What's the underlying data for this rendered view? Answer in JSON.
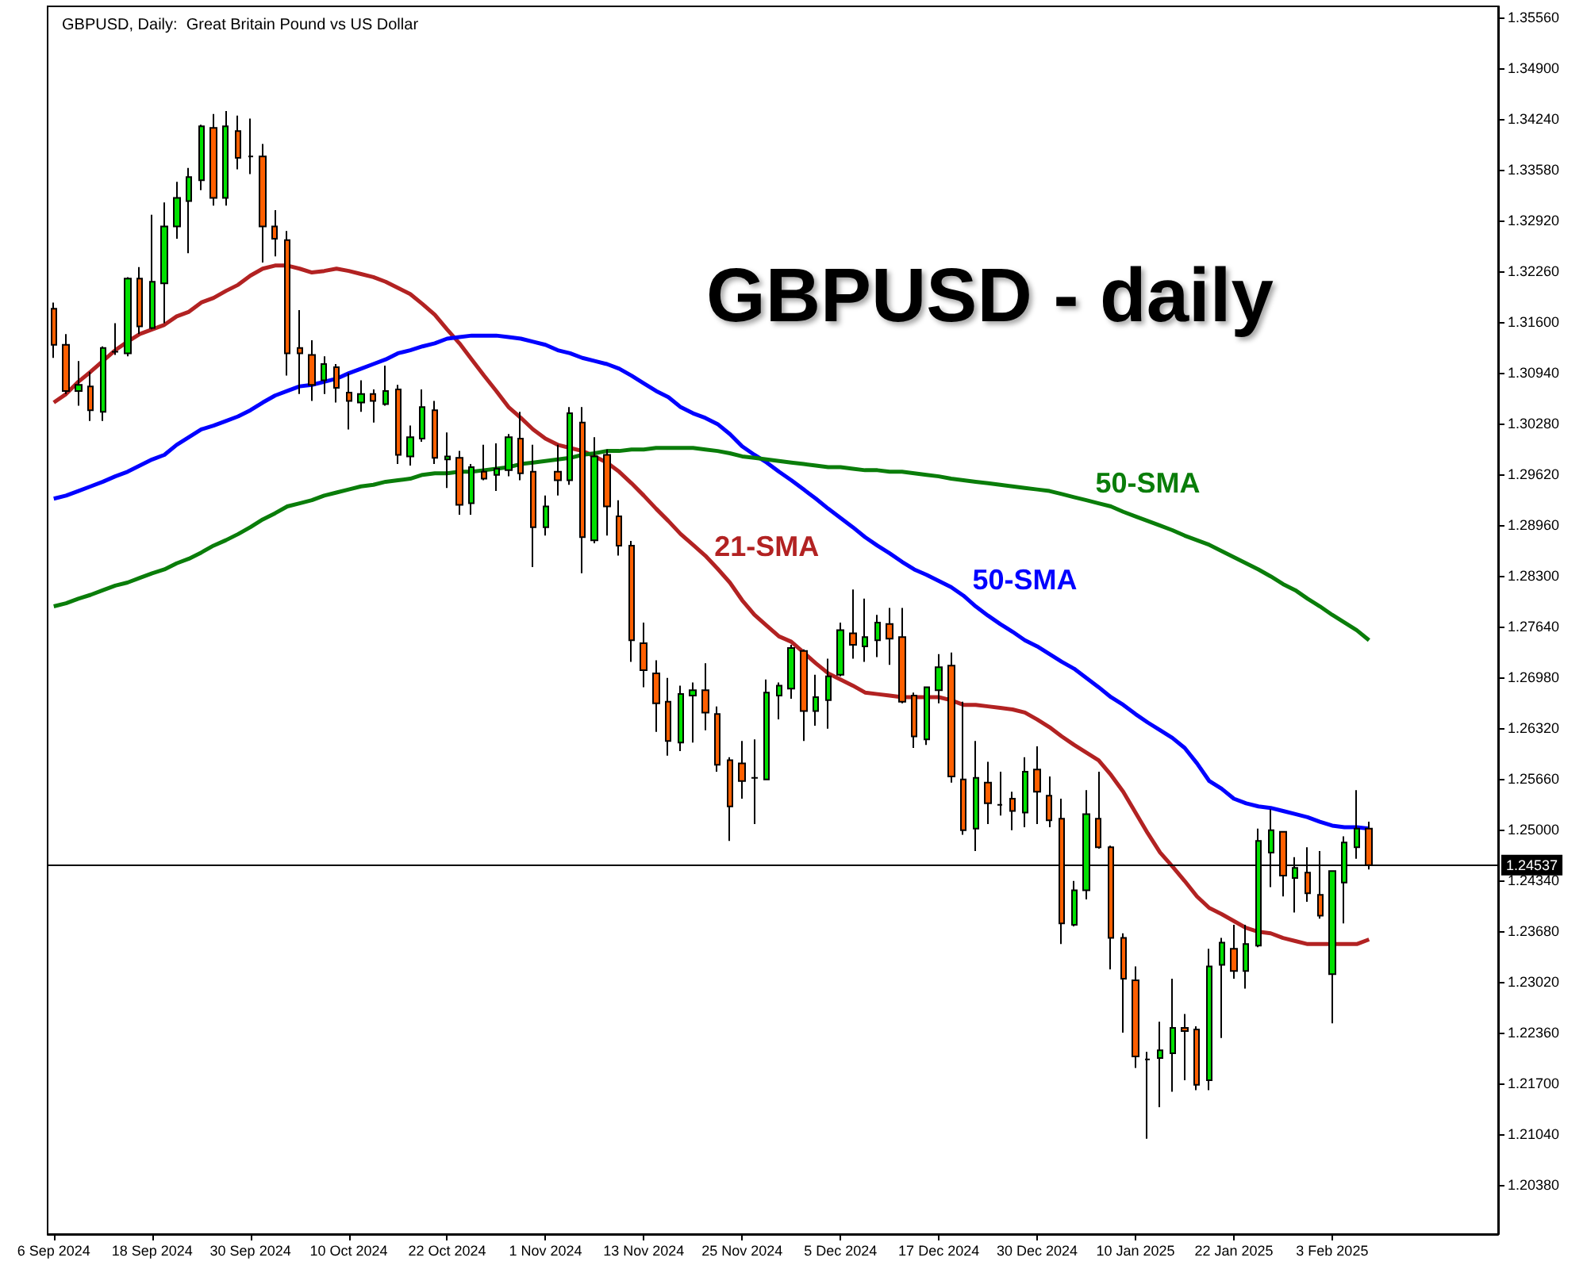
{
  "chart_data": {
    "type": "candlestick",
    "title": "GBPUSD - daily",
    "subtitle": "GBPUSD, Daily:  Great Britain Pound vs US Dollar",
    "categories": [
      "6 Sep 2024",
      null,
      null,
      null,
      null,
      null,
      null,
      null,
      "18 Sep 2024",
      null,
      null,
      null,
      null,
      null,
      null,
      null,
      "30 Sep 2024",
      null,
      null,
      null,
      null,
      null,
      null,
      null,
      "10 Oct 2024",
      null,
      null,
      null,
      null,
      null,
      null,
      null,
      "22 Oct 2024",
      null,
      null,
      null,
      null,
      null,
      null,
      null,
      "1 Nov 2024",
      null,
      null,
      null,
      null,
      null,
      null,
      null,
      "13 Nov 2024",
      null,
      null,
      null,
      null,
      null,
      null,
      null,
      "25 Nov 2024",
      null,
      null,
      null,
      null,
      null,
      null,
      null,
      "5 Dec 2024",
      null,
      null,
      null,
      null,
      null,
      null,
      null,
      "17 Dec 2024",
      null,
      null,
      null,
      null,
      null,
      null,
      null,
      "30 Dec 2024",
      null,
      null,
      null,
      null,
      null,
      null,
      null,
      "10 Jan 2025",
      null,
      null,
      null,
      null,
      null,
      null,
      null,
      "22 Jan 2025",
      null,
      null,
      null,
      null,
      null,
      null,
      null,
      "3 Feb 2025",
      null,
      null,
      null,
      null,
      null,
      null,
      null,
      null,
      null,
      null,
      null,
      null,
      null
    ],
    "ohlc": [
      [
        1.3177,
        1.3185,
        1.3113,
        1.313
      ],
      [
        1.313,
        1.3144,
        1.3066,
        1.307
      ],
      [
        1.307,
        1.3109,
        1.3051,
        1.3078
      ],
      [
        1.3076,
        1.3095,
        1.3031,
        1.3045
      ],
      [
        1.3043,
        1.3128,
        1.3031,
        1.3126
      ],
      [
        1.3121,
        1.3158,
        1.3117,
        1.3121
      ],
      [
        1.3119,
        1.3218,
        1.3115,
        1.3216
      ],
      [
        1.3216,
        1.3231,
        1.3144,
        1.3154
      ],
      [
        1.3152,
        1.3299,
        1.315,
        1.3212
      ],
      [
        1.321,
        1.3315,
        1.3158,
        1.3284
      ],
      [
        1.3284,
        1.3342,
        1.3268,
        1.3321
      ],
      [
        1.3317,
        1.336,
        1.3249,
        1.3348
      ],
      [
        1.3344,
        1.3416,
        1.3331,
        1.3414
      ],
      [
        1.3412,
        1.343,
        1.3311,
        1.3321
      ],
      [
        1.3321,
        1.3434,
        1.3311,
        1.3414
      ],
      [
        1.3408,
        1.3428,
        1.3358,
        1.3373
      ],
      [
        1.3375,
        1.3424,
        1.3352,
        1.3375
      ],
      [
        1.3375,
        1.3391,
        1.3237,
        1.3284
      ],
      [
        1.3284,
        1.3305,
        1.3245,
        1.3268
      ],
      [
        1.3266,
        1.3278,
        1.309,
        1.3119
      ],
      [
        1.3126,
        1.3175,
        1.3066,
        1.3119
      ],
      [
        1.3117,
        1.3136,
        1.3057,
        1.3078
      ],
      [
        1.3084,
        1.3115,
        1.3066,
        1.3105
      ],
      [
        1.3101,
        1.3105,
        1.3055,
        1.3074
      ],
      [
        1.3068,
        1.3093,
        1.302,
        1.3057
      ],
      [
        1.3055,
        1.3084,
        1.3043,
        1.3066
      ],
      [
        1.3066,
        1.3072,
        1.3029,
        1.3057
      ],
      [
        1.3053,
        1.3103,
        1.3051,
        1.307
      ],
      [
        1.3072,
        1.3078,
        1.2975,
        1.2987
      ],
      [
        1.2985,
        1.3025,
        1.2973,
        1.301
      ],
      [
        1.3008,
        1.3072,
        1.3004,
        1.3049
      ],
      [
        1.3045,
        1.3057,
        1.2975,
        1.2983
      ],
      [
        1.2981,
        1.3016,
        1.2944,
        1.2985
      ],
      [
        1.2983,
        1.2992,
        1.2909,
        1.2922
      ],
      [
        1.2924,
        1.2975,
        1.2909,
        1.2971
      ],
      [
        1.2965,
        1.3,
        1.2954,
        1.2956
      ],
      [
        1.2961,
        1.3002,
        1.294,
        1.2969
      ],
      [
        1.2967,
        1.3014,
        1.2959,
        1.301
      ],
      [
        1.3008,
        1.3043,
        1.2954,
        1.2963
      ],
      [
        1.2965,
        1.3,
        1.2841,
        1.2893
      ],
      [
        1.2893,
        1.2934,
        1.2882,
        1.292
      ],
      [
        1.2965,
        1.3,
        1.2934,
        1.2954
      ],
      [
        1.2954,
        1.3049,
        1.2948,
        1.3041
      ],
      [
        1.3029,
        1.3049,
        1.2833,
        1.288
      ],
      [
        1.2876,
        1.301,
        1.2872,
        1.2985
      ],
      [
        1.2987,
        1.2994,
        1.2882,
        1.292
      ],
      [
        1.2907,
        1.2928,
        1.2856,
        1.2869
      ],
      [
        1.2869,
        1.2875,
        1.2718,
        1.2746
      ],
      [
        1.2742,
        1.2769,
        1.2685,
        1.2707
      ],
      [
        1.2703,
        1.272,
        1.2627,
        1.2664
      ],
      [
        1.2666,
        1.2697,
        1.2596,
        1.2615
      ],
      [
        1.2613,
        1.2687,
        1.2602,
        1.2676
      ],
      [
        1.2674,
        1.2691,
        1.2613,
        1.2681
      ],
      [
        1.2681,
        1.2716,
        1.2629,
        1.2652
      ],
      [
        1.265,
        1.266,
        1.2575,
        1.2584
      ],
      [
        1.259,
        1.2594,
        1.2485,
        1.253
      ],
      [
        1.2586,
        1.2615,
        1.254,
        1.2563
      ],
      [
        1.2567,
        1.2617,
        1.2507,
        1.2567
      ],
      [
        1.2565,
        1.2695,
        1.2565,
        1.2678
      ],
      [
        1.2674,
        1.2691,
        1.2643,
        1.2687
      ],
      [
        1.2683,
        1.274,
        1.267,
        1.2736
      ],
      [
        1.2732,
        1.2734,
        1.2615,
        1.2654
      ],
      [
        1.2654,
        1.2701,
        1.2635,
        1.2672
      ],
      [
        1.2668,
        1.2722,
        1.2631,
        1.2699
      ],
      [
        1.2701,
        1.2769,
        1.2699,
        1.2759
      ],
      [
        1.2755,
        1.2812,
        1.2722,
        1.274
      ],
      [
        1.2738,
        1.28,
        1.2718,
        1.275
      ],
      [
        1.2746,
        1.2779,
        1.2724,
        1.2769
      ],
      [
        1.2767,
        1.2788,
        1.2714,
        1.2748
      ],
      [
        1.275,
        1.2788,
        1.2664,
        1.2666
      ],
      [
        1.2674,
        1.2678,
        1.2606,
        1.2621
      ],
      [
        1.2617,
        1.2685,
        1.261,
        1.2685
      ],
      [
        1.2681,
        1.2728,
        1.2664,
        1.2711
      ],
      [
        1.2713,
        1.273,
        1.2561,
        1.2569
      ],
      [
        1.2565,
        1.2666,
        1.2493,
        1.2499
      ],
      [
        1.2501,
        1.2615,
        1.2472,
        1.2567
      ],
      [
        1.2561,
        1.2588,
        1.2507,
        1.2534
      ],
      [
        1.2532,
        1.2575,
        1.2518,
        1.2532
      ],
      [
        1.254,
        1.2549,
        1.2499,
        1.2524
      ],
      [
        1.2522,
        1.2594,
        1.2503,
        1.2575
      ],
      [
        1.2578,
        1.2608,
        1.2507,
        1.2549
      ],
      [
        1.2544,
        1.2569,
        1.2503,
        1.2512
      ],
      [
        1.2514,
        1.254,
        1.2351,
        1.2378
      ],
      [
        1.2376,
        1.2433,
        1.2374,
        1.2421
      ],
      [
        1.2421,
        1.2551,
        1.2409,
        1.252
      ],
      [
        1.2514,
        1.2575,
        1.2475,
        1.2477
      ],
      [
        1.2477,
        1.2479,
        1.2318,
        1.2359
      ],
      [
        1.2359,
        1.2365,
        1.2236,
        1.2306
      ],
      [
        1.2304,
        1.2322,
        1.219,
        1.2205
      ],
      [
        1.2201,
        1.2211,
        1.2098,
        1.2201
      ],
      [
        1.2203,
        1.225,
        1.2139,
        1.2213
      ],
      [
        1.2209,
        1.2306,
        1.2159,
        1.2242
      ],
      [
        1.2242,
        1.226,
        1.2174,
        1.2238
      ],
      [
        1.224,
        1.2244,
        1.2161,
        1.2168
      ],
      [
        1.2174,
        1.2345,
        1.2161,
        1.2322
      ],
      [
        1.2324,
        1.2359,
        1.2229,
        1.2353
      ],
      [
        1.2345,
        1.2376,
        1.2306,
        1.2316
      ],
      [
        1.2316,
        1.2376,
        1.2293,
        1.2351
      ],
      [
        1.2349,
        1.2501,
        1.2347,
        1.2485
      ],
      [
        1.247,
        1.2526,
        1.2425,
        1.2499
      ],
      [
        1.2497,
        1.2497,
        1.2413,
        1.244
      ],
      [
        1.2437,
        1.2464,
        1.2392,
        1.245
      ],
      [
        1.2444,
        1.2477,
        1.2406,
        1.2417
      ],
      [
        1.2415,
        1.2472,
        1.2384,
        1.2388
      ],
      [
        1.2312,
        1.2446,
        1.2248,
        1.2446
      ],
      [
        1.2431,
        1.2491,
        1.2378,
        1.2483
      ],
      [
        1.2477,
        1.2551,
        1.2462,
        1.2501
      ],
      [
        1.2501,
        1.251,
        1.2448,
        1.24537
      ],
      null,
      null,
      null,
      null,
      null,
      null,
      null,
      null,
      null,
      null
    ],
    "colors": [
      "#ff5f00",
      "#ff5f00",
      "#00e000",
      "#ff5f00",
      "#00e000",
      "#000000",
      "#00e000",
      "#ff5f00",
      "#00e000",
      "#00e000",
      "#00e000",
      "#00e000",
      "#00e000",
      "#ff5f00",
      "#00e000",
      "#ff5f00",
      "#000000",
      "#ff5f00",
      "#ff5f00",
      "#ff5f00",
      "#ff5f00",
      "#ff5f00",
      "#00e000",
      "#ff5f00",
      "#ff5f00",
      "#00e000",
      "#ff5f00",
      "#00e000",
      "#ff5f00",
      "#00e000",
      "#00e000",
      "#ff5f00",
      "#00e000",
      "#ff5f00",
      "#00e000",
      "#ff5f00",
      "#00e000",
      "#00e000",
      "#ff5f00",
      "#ff5f00",
      "#00e000",
      "#ff5f00",
      "#00e000",
      "#ff5f00",
      "#00e000",
      "#ff5f00",
      "#ff5f00",
      "#ff5f00",
      "#ff5f00",
      "#ff5f00",
      "#ff5f00",
      "#00e000",
      "#00e000",
      "#ff5f00",
      "#ff5f00",
      "#ff5f00",
      "#ff5f00",
      "#000000",
      "#00e000",
      "#00e000",
      "#00e000",
      "#ff5f00",
      "#00e000",
      "#00e000",
      "#00e000",
      "#ff5f00",
      "#00e000",
      "#00e000",
      "#ff5f00",
      "#ff5f00",
      "#ff5f00",
      "#00e000",
      "#00e000",
      "#ff5f00",
      "#ff5f00",
      "#00e000",
      "#ff5f00",
      "#000000",
      "#ff5f00",
      "#00e000",
      "#ff5f00",
      "#ff5f00",
      "#ff5f00",
      "#00e000",
      "#00e000",
      "#ff5f00",
      "#ff5f00",
      "#ff5f00",
      "#ff5f00",
      "#000000",
      "#00e000",
      "#00e000",
      "#ff5f00",
      "#ff5f00",
      "#00e000",
      "#00e000",
      "#ff5f00",
      "#00e000",
      "#00e000",
      "#00e000",
      "#ff5f00",
      "#00e000",
      "#ff5f00",
      "#ff5f00",
      "#00e000",
      "#00e000",
      "#00e000",
      "#ff5f00",
      null,
      null,
      null,
      null,
      null,
      null,
      null,
      null,
      null,
      null
    ],
    "series": [
      {
        "type": "line",
        "name": "21-SMA",
        "color": "#b22222",
        "values": [
          1.3055,
          1.3066,
          1.3082,
          1.3095,
          1.3109,
          1.3123,
          1.3134,
          1.3144,
          1.315,
          1.3156,
          1.3167,
          1.3173,
          1.3185,
          1.3191,
          1.32,
          1.3208,
          1.322,
          1.3229,
          1.3233,
          1.3233,
          1.3229,
          1.3224,
          1.3226,
          1.3229,
          1.3226,
          1.3222,
          1.3218,
          1.3212,
          1.3204,
          1.3196,
          1.3183,
          1.3169,
          1.315,
          1.3132,
          1.3111,
          1.309,
          1.307,
          1.3049,
          1.3035,
          1.302,
          1.3008,
          1.3,
          1.2996,
          1.2992,
          1.2985,
          1.2977,
          1.2965,
          1.295,
          1.2934,
          1.2917,
          1.2901,
          1.2884,
          1.287,
          1.2856,
          1.2839,
          1.2821,
          1.2798,
          1.2779,
          1.2765,
          1.2751,
          1.2744,
          1.273,
          1.2716,
          1.2703,
          1.2695,
          1.2687,
          1.2678,
          1.2676,
          1.2674,
          1.2672,
          1.2672,
          1.2672,
          1.2672,
          1.2668,
          1.2662,
          1.2662,
          1.266,
          1.2658,
          1.2656,
          1.2652,
          1.2643,
          1.2633,
          1.2621,
          1.261,
          1.26,
          1.259,
          1.2571,
          1.2549,
          1.2522,
          1.2495,
          1.247,
          1.2452,
          1.2433,
          1.2413,
          1.2398,
          1.239,
          1.2381,
          1.2372,
          1.2367,
          1.2365,
          1.2359,
          1.2355,
          1.2351,
          1.2351,
          1.2351,
          1.2351,
          1.2351,
          1.2357,
          null,
          null,
          null,
          null,
          null,
          null,
          null,
          null,
          null,
          null
        ]
      },
      {
        "type": "line",
        "name": "50-SMA",
        "color": "#0000ff",
        "values": [
          1.293,
          1.2934,
          1.294,
          1.2946,
          1.2952,
          1.2959,
          1.2965,
          1.2973,
          1.2981,
          1.2987,
          1.3,
          1.301,
          1.302,
          1.3025,
          1.3031,
          1.3037,
          1.3045,
          1.3055,
          1.3064,
          1.307,
          1.3076,
          1.3078,
          1.3082,
          1.3086,
          1.3093,
          1.3099,
          1.3105,
          1.3111,
          1.3119,
          1.3123,
          1.3128,
          1.3132,
          1.3138,
          1.314,
          1.3142,
          1.3142,
          1.3142,
          1.314,
          1.3138,
          1.3134,
          1.313,
          1.3123,
          1.3119,
          1.3113,
          1.3109,
          1.3105,
          1.3099,
          1.309,
          1.308,
          1.307,
          1.3062,
          1.3049,
          1.3041,
          1.3035,
          1.3027,
          1.3014,
          1.2998,
          1.2987,
          1.2977,
          1.2965,
          1.2954,
          1.2942,
          1.293,
          1.2917,
          1.2905,
          1.2893,
          1.288,
          1.2869,
          1.2859,
          1.2848,
          1.2838,
          1.2831,
          1.2823,
          1.2815,
          1.2804,
          1.279,
          1.2778,
          1.2767,
          1.2757,
          1.2746,
          1.2738,
          1.2728,
          1.2718,
          1.2709,
          1.2697,
          1.2685,
          1.2672,
          1.2662,
          1.265,
          1.2639,
          1.2629,
          1.2619,
          1.2606,
          1.2586,
          1.2563,
          1.2553,
          1.254,
          1.2534,
          1.253,
          1.2528,
          1.2524,
          1.252,
          1.2516,
          1.251,
          1.2505,
          1.2503,
          1.2503,
          1.2501,
          null,
          null,
          null,
          null,
          null,
          null,
          null,
          null,
          null,
          null
        ]
      },
      {
        "type": "line",
        "name": "50-SMA",
        "color": "#0a7d0a",
        "values": [
          1.279,
          1.2794,
          1.28,
          1.2805,
          1.2811,
          1.2817,
          1.2821,
          1.2827,
          1.2833,
          1.2838,
          1.2846,
          1.2852,
          1.286,
          1.2869,
          1.2876,
          1.2884,
          1.2893,
          1.2903,
          1.2911,
          1.292,
          1.2924,
          1.2928,
          1.2934,
          1.2938,
          1.2942,
          1.2946,
          1.2948,
          1.2952,
          1.2954,
          1.2956,
          1.2961,
          1.2963,
          1.2963,
          1.2965,
          1.2965,
          1.2967,
          1.2969,
          1.2971,
          1.2975,
          1.2977,
          1.2979,
          1.2981,
          1.2983,
          1.2987,
          1.2989,
          1.2992,
          1.2992,
          1.2994,
          1.2994,
          1.2996,
          1.2996,
          1.2996,
          1.2996,
          1.2994,
          1.2992,
          1.2989,
          1.2985,
          1.2983,
          1.2981,
          1.2979,
          1.2977,
          1.2975,
          1.2973,
          1.2971,
          1.2971,
          1.2969,
          1.2967,
          1.2967,
          1.2965,
          1.2965,
          1.2963,
          1.2961,
          1.2959,
          1.2956,
          1.2954,
          1.2952,
          1.295,
          1.2948,
          1.2946,
          1.2944,
          1.2942,
          1.294,
          1.2936,
          1.2932,
          1.2928,
          1.2924,
          1.292,
          1.2913,
          1.2907,
          1.2901,
          1.2895,
          1.2889,
          1.2882,
          1.2876,
          1.287,
          1.2862,
          1.2854,
          1.2846,
          1.2838,
          1.2829,
          1.2819,
          1.2811,
          1.28,
          1.279,
          1.2779,
          1.2769,
          1.2759,
          1.2746,
          null,
          null,
          null,
          null,
          null,
          null,
          null,
          null,
          null,
          null
        ]
      }
    ],
    "ylim": [
      1.1974,
      1.357
    ],
    "yticks": [
      {
        "value": 1.2038,
        "label": "1.20380"
      },
      {
        "value": 1.2104,
        "label": "1.21040"
      },
      {
        "value": 1.217,
        "label": "1.21700"
      },
      {
        "value": 1.2236,
        "label": "1.22360"
      },
      {
        "value": 1.2302,
        "label": "1.23020"
      },
      {
        "value": 1.2368,
        "label": "1.23680"
      },
      {
        "value": 1.2434,
        "label": "1.24340"
      },
      {
        "value": 1.25,
        "label": "1.25000"
      },
      {
        "value": 1.2566,
        "label": "1.25660"
      },
      {
        "value": 1.2632,
        "label": "1.26320"
      },
      {
        "value": 1.2698,
        "label": "1.26980"
      },
      {
        "value": 1.2764,
        "label": "1.27640"
      },
      {
        "value": 1.283,
        "label": "1.28300"
      },
      {
        "value": 1.2896,
        "label": "1.28960"
      },
      {
        "value": 1.2962,
        "label": "1.29620"
      },
      {
        "value": 1.3028,
        "label": "1.30280"
      },
      {
        "value": 1.3094,
        "label": "1.30940"
      },
      {
        "value": 1.316,
        "label": "1.31600"
      },
      {
        "value": 1.3226,
        "label": "1.32260"
      },
      {
        "value": 1.3292,
        "label": "1.32920"
      },
      {
        "value": 1.3358,
        "label": "1.33580"
      },
      {
        "value": 1.3424,
        "label": "1.34240"
      },
      {
        "value": 1.349,
        "label": "1.34900"
      },
      {
        "value": 1.3556,
        "label": "1.35560"
      }
    ],
    "ref_lines": [
      {
        "axis": "y",
        "value": 1.24537,
        "label": "1.24537",
        "color": "#000000"
      }
    ]
  }
}
